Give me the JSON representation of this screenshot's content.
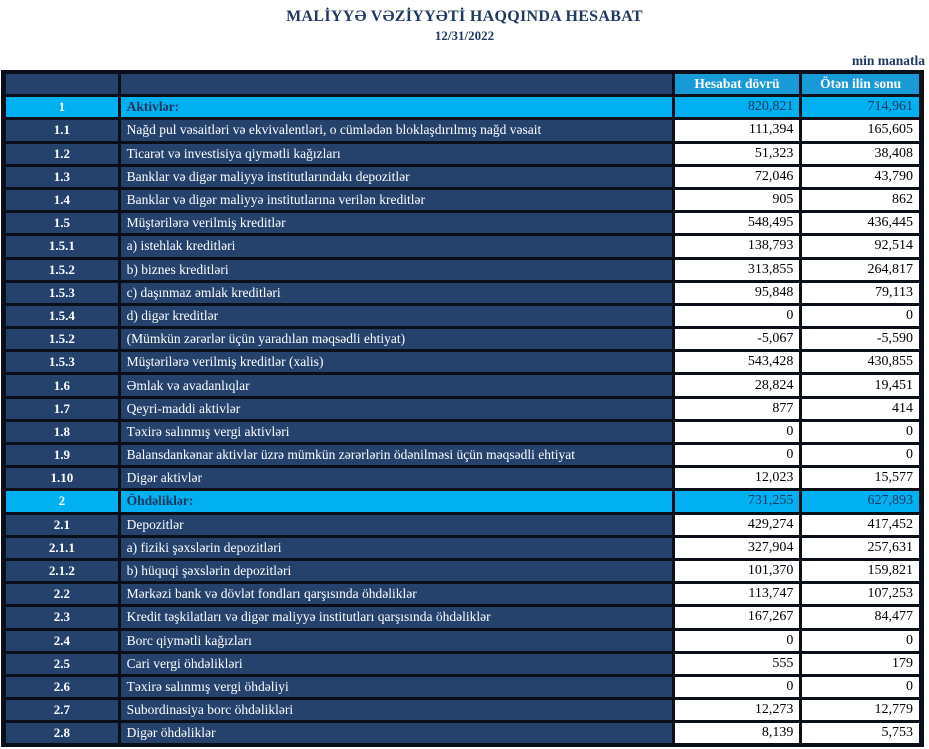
{
  "header": {
    "title": "MALİYYƏ VƏZİYYƏTİ HAQQINDA HESABAT",
    "date": "12/31/2022",
    "unit_note": "min manatla"
  },
  "colors": {
    "title_text": "#1F3864",
    "label_cell_navy": "#24426C",
    "highlight_cyan": "#00B0F0",
    "column_header_blue": "#189AD6",
    "border_black": "#0a0f1a",
    "highlight_text_navy": "#17375E"
  },
  "table": {
    "columns": [
      "Hesabat dövrü",
      "Ötən ilin sonu"
    ],
    "rows": [
      {
        "no": "1",
        "label": "Aktivlər:",
        "current": "820,821",
        "previous": "714,961",
        "highlight": true
      },
      {
        "no": "1.1",
        "label": "Nağd pul vəsaitləri və  ekvivalentləri, o cümlədən bloklaşdırılmış nağd vəsait",
        "current": "111,394",
        "previous": "165,605",
        "highlight": false
      },
      {
        "no": "1.2",
        "label": "Ticarət və investisiya qiymətli kağızları",
        "current": "51,323",
        "previous": "38,408",
        "highlight": false
      },
      {
        "no": "1.3",
        "label": "Banklar və digər maliyyə institutlarındakı depozitlər",
        "current": "72,046",
        "previous": "43,790",
        "highlight": false
      },
      {
        "no": "1.4",
        "label": "Banklar və digər maliyyə institutlarına verilən kreditlər",
        "current": "905",
        "previous": "862",
        "highlight": false
      },
      {
        "no": "1.5",
        "label": "Müştərilərə verilmiş kreditlər",
        "current": "548,495",
        "previous": "436,445",
        "highlight": false
      },
      {
        "no": "1.5.1",
        "label": "a) istehlak kreditləri",
        "current": "138,793",
        "previous": "92,514",
        "highlight": false
      },
      {
        "no": "1.5.2",
        "label": "b) biznes kreditləri",
        "current": "313,855",
        "previous": "264,817",
        "highlight": false
      },
      {
        "no": "1.5.3",
        "label": "c) daşınmaz əmlak kreditləri",
        "current": "95,848",
        "previous": "79,113",
        "highlight": false
      },
      {
        "no": "1.5.4",
        "label": "d) digər kreditlər",
        "current": "0",
        "previous": "0",
        "highlight": false
      },
      {
        "no": "1.5.2",
        "label": "(Mümkün zərərlər üçün yaradılan məqsədli ehtiyat)",
        "current": "-5,067",
        "previous": "-5,590",
        "highlight": false
      },
      {
        "no": "1.5.3",
        "label": "Müştərilərə verilmiş kreditlər (xalis)",
        "current": "543,428",
        "previous": "430,855",
        "highlight": false
      },
      {
        "no": "1.6",
        "label": "Əmlak və avadanlıqlar",
        "current": "28,824",
        "previous": "19,451",
        "highlight": false
      },
      {
        "no": "1.7",
        "label": "Qeyri-maddi aktivlər",
        "current": "877",
        "previous": "414",
        "highlight": false
      },
      {
        "no": "1.8",
        "label": "Təxirə salınmış vergi aktivləri",
        "current": "0",
        "previous": "0",
        "highlight": false
      },
      {
        "no": "1.9",
        "label": "Balansdankənar aktivlər üzrə mümkün zərərlərin ödənilməsi üçün məqsədli ehtiyat",
        "current": "0",
        "previous": "0",
        "highlight": false
      },
      {
        "no": "1.10",
        "label": "Digər aktivlər",
        "current": "12,023",
        "previous": "15,577",
        "highlight": false
      },
      {
        "no": "2",
        "label": "Öhdəliklər:",
        "current": "731,255",
        "previous": "627,893",
        "highlight": true
      },
      {
        "no": "2.1",
        "label": "Depozitlər",
        "current": "429,274",
        "previous": "417,452",
        "highlight": false
      },
      {
        "no": "2.1.1",
        "label": "a) fiziki şəxslərin depozitləri",
        "current": "327,904",
        "previous": "257,631",
        "highlight": false
      },
      {
        "no": "2.1.2",
        "label": "b) hüquqi şəxslərin depozitləri",
        "current": "101,370",
        "previous": "159,821",
        "highlight": false
      },
      {
        "no": "2.2",
        "label": "Mərkəzi bank və dövlət fondları qarşısında öhdəliklər",
        "current": "113,747",
        "previous": "107,253",
        "highlight": false
      },
      {
        "no": "2.3",
        "label": "Kredit təşkilatları və digər maliyyə institutları qarşısında öhdəliklər",
        "current": "167,267",
        "previous": "84,477",
        "highlight": false
      },
      {
        "no": "2.4",
        "label": "Borc qiymətli kağızları",
        "current": "0",
        "previous": "0",
        "highlight": false
      },
      {
        "no": "2.5",
        "label": "Cari vergi öhdəlikləri",
        "current": "555",
        "previous": "179",
        "highlight": false
      },
      {
        "no": "2.6",
        "label": "Təxirə salınmış vergi öhdəliyi",
        "current": "0",
        "previous": "0",
        "highlight": false
      },
      {
        "no": "2.7",
        "label": "Subordinasiya borc öhdəlikləri",
        "current": "12,273",
        "previous": "12,779",
        "highlight": false
      },
      {
        "no": "2.8",
        "label": "Digər öhdəliklər",
        "current": "8,139",
        "previous": "5,753",
        "highlight": false
      }
    ]
  }
}
